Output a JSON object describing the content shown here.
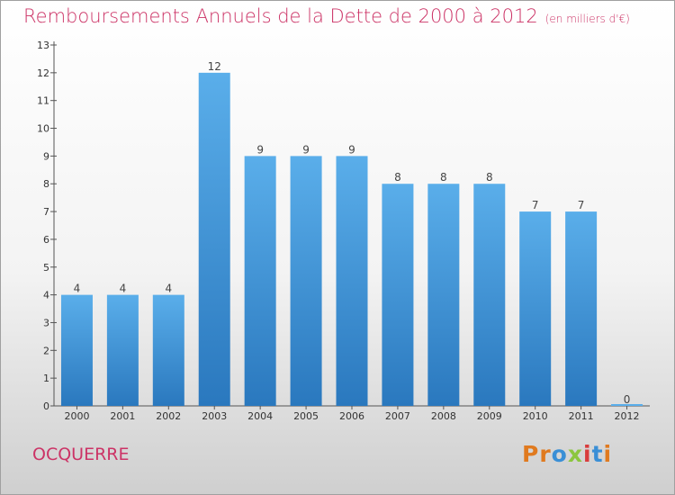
{
  "title": "Remboursements Annuels de la Dette de 2000 à 2012",
  "subtitle": "(en milliers d'€)",
  "town": "OCQUERRE",
  "logo": {
    "text": "Proxiti",
    "letters": [
      {
        "ch": "P",
        "color": "#e07a1f"
      },
      {
        "ch": "r",
        "color": "#e07a1f"
      },
      {
        "ch": "o",
        "color": "#3a8fd6"
      },
      {
        "ch": "x",
        "color": "#8cc63f"
      },
      {
        "ch": "i",
        "color": "#d93c3c"
      },
      {
        "ch": "t",
        "color": "#3a8fd6"
      },
      {
        "ch": "i",
        "color": "#e07a1f"
      }
    ]
  },
  "colors": {
    "title": "#cc3366",
    "bar_top": "#5aaeea",
    "bar_bottom": "#2a78be"
  },
  "chart_data": {
    "type": "bar",
    "categories": [
      "2000",
      "2001",
      "2002",
      "2003",
      "2004",
      "2005",
      "2006",
      "2007",
      "2008",
      "2009",
      "2010",
      "2011",
      "2012"
    ],
    "values": [
      4,
      4,
      4,
      12,
      9,
      9,
      9,
      8,
      8,
      8,
      7,
      7,
      0
    ],
    "title": "Remboursements Annuels de la Dette de 2000 à 2012",
    "subtitle": "(en milliers d'€)",
    "xlabel": "",
    "ylabel": "",
    "ylim": [
      0,
      13
    ],
    "yticks": [
      0,
      1,
      2,
      3,
      4,
      5,
      6,
      7,
      8,
      9,
      10,
      11,
      12,
      13
    ],
    "grid": false,
    "data_labels": true
  }
}
